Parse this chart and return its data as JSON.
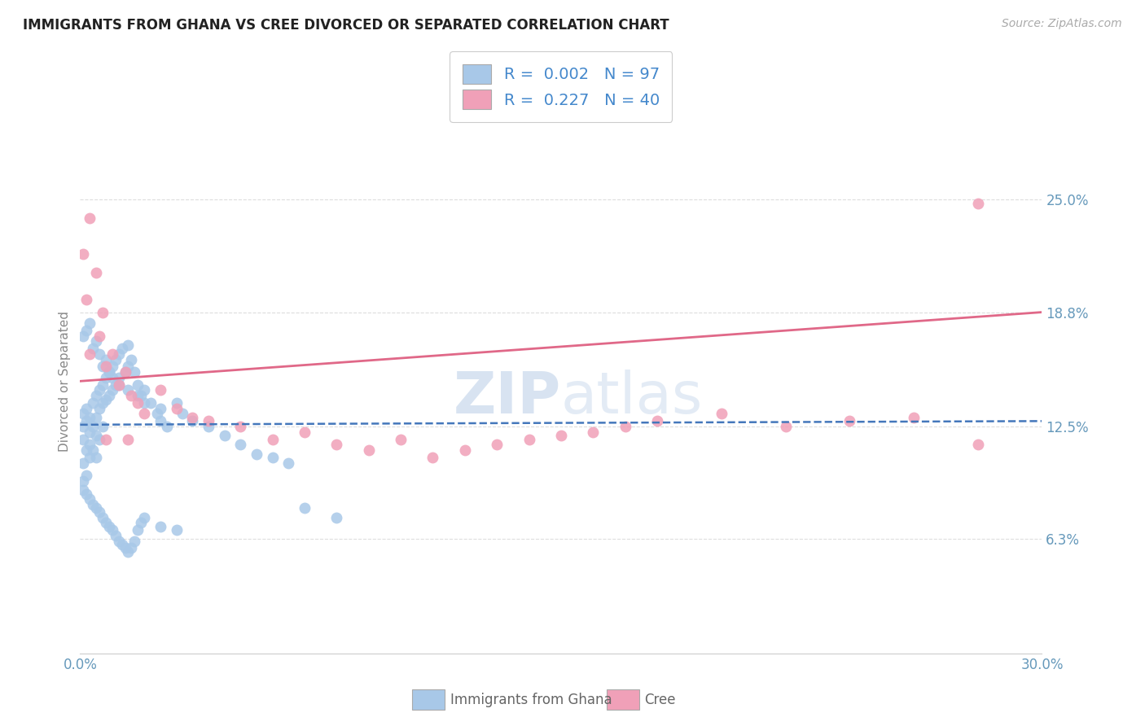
{
  "title": "IMMIGRANTS FROM GHANA VS CREE DIVORCED OR SEPARATED CORRELATION CHART",
  "source_text": "Source: ZipAtlas.com",
  "ylabel": "Divorced or Separated",
  "legend_label_1": "Immigrants from Ghana",
  "legend_label_2": "Cree",
  "R1": 0.002,
  "N1": 97,
  "R2": 0.227,
  "N2": 40,
  "xlim": [
    0.0,
    0.3
  ],
  "ylim": [
    0.0,
    0.3
  ],
  "yticks": [
    0.063,
    0.125,
    0.188,
    0.25
  ],
  "ytick_labels": [
    "6.3%",
    "12.5%",
    "18.8%",
    "25.0%"
  ],
  "xticks": [
    0.0,
    0.033,
    0.067,
    0.1,
    0.133,
    0.167,
    0.2,
    0.233,
    0.267,
    0.3
  ],
  "xtick_labels": [
    "0.0%",
    "",
    "",
    "",
    "",
    "",
    "",
    "",
    "",
    "30.0%"
  ],
  "color_ghana": "#a8c8e8",
  "color_cree": "#f0a0b8",
  "trend_color_ghana": "#4477bb",
  "trend_color_cree": "#e06888",
  "background_color": "#ffffff",
  "watermark_zip": "ZIP",
  "watermark_atlas": "atlas",
  "ghana_x": [
    0.001,
    0.001,
    0.001,
    0.001,
    0.001,
    0.002,
    0.002,
    0.002,
    0.002,
    0.003,
    0.003,
    0.003,
    0.003,
    0.004,
    0.004,
    0.004,
    0.005,
    0.005,
    0.005,
    0.005,
    0.006,
    0.006,
    0.006,
    0.007,
    0.007,
    0.007,
    0.008,
    0.008,
    0.009,
    0.009,
    0.01,
    0.01,
    0.011,
    0.011,
    0.012,
    0.012,
    0.013,
    0.014,
    0.015,
    0.015,
    0.016,
    0.017,
    0.018,
    0.019,
    0.02,
    0.022,
    0.024,
    0.025,
    0.027,
    0.03,
    0.032,
    0.035,
    0.04,
    0.045,
    0.05,
    0.055,
    0.06,
    0.065,
    0.07,
    0.08,
    0.001,
    0.002,
    0.003,
    0.004,
    0.005,
    0.006,
    0.007,
    0.008,
    0.009,
    0.01,
    0.011,
    0.012,
    0.013,
    0.014,
    0.015,
    0.016,
    0.017,
    0.018,
    0.019,
    0.02,
    0.025,
    0.03,
    0.001,
    0.002,
    0.003,
    0.004,
    0.005,
    0.006,
    0.007,
    0.008,
    0.009,
    0.01,
    0.012,
    0.015,
    0.018,
    0.02,
    0.025
  ],
  "ghana_y": [
    0.125,
    0.132,
    0.118,
    0.105,
    0.095,
    0.128,
    0.135,
    0.112,
    0.098,
    0.13,
    0.122,
    0.115,
    0.108,
    0.138,
    0.125,
    0.112,
    0.142,
    0.13,
    0.12,
    0.108,
    0.145,
    0.135,
    0.118,
    0.148,
    0.138,
    0.125,
    0.152,
    0.14,
    0.155,
    0.142,
    0.158,
    0.145,
    0.162,
    0.148,
    0.165,
    0.152,
    0.168,
    0.155,
    0.17,
    0.158,
    0.162,
    0.155,
    0.148,
    0.142,
    0.145,
    0.138,
    0.132,
    0.128,
    0.125,
    0.138,
    0.132,
    0.128,
    0.125,
    0.12,
    0.115,
    0.11,
    0.108,
    0.105,
    0.08,
    0.075,
    0.09,
    0.088,
    0.085,
    0.082,
    0.08,
    0.078,
    0.075,
    0.072,
    0.07,
    0.068,
    0.065,
    0.062,
    0.06,
    0.058,
    0.056,
    0.058,
    0.062,
    0.068,
    0.072,
    0.075,
    0.07,
    0.068,
    0.175,
    0.178,
    0.182,
    0.168,
    0.172,
    0.165,
    0.158,
    0.162,
    0.155,
    0.152,
    0.148,
    0.145,
    0.142,
    0.138,
    0.135
  ],
  "cree_x": [
    0.001,
    0.002,
    0.003,
    0.005,
    0.006,
    0.007,
    0.008,
    0.01,
    0.012,
    0.014,
    0.016,
    0.018,
    0.02,
    0.025,
    0.03,
    0.035,
    0.04,
    0.05,
    0.06,
    0.07,
    0.08,
    0.09,
    0.1,
    0.11,
    0.12,
    0.13,
    0.14,
    0.15,
    0.16,
    0.17,
    0.18,
    0.2,
    0.22,
    0.24,
    0.26,
    0.28,
    0.003,
    0.008,
    0.015,
    0.28
  ],
  "cree_y": [
    0.22,
    0.195,
    0.24,
    0.21,
    0.175,
    0.188,
    0.158,
    0.165,
    0.148,
    0.155,
    0.142,
    0.138,
    0.132,
    0.145,
    0.135,
    0.13,
    0.128,
    0.125,
    0.118,
    0.122,
    0.115,
    0.112,
    0.118,
    0.108,
    0.112,
    0.115,
    0.118,
    0.12,
    0.122,
    0.125,
    0.128,
    0.132,
    0.125,
    0.128,
    0.13,
    0.248,
    0.165,
    0.118,
    0.118,
    0.115
  ]
}
